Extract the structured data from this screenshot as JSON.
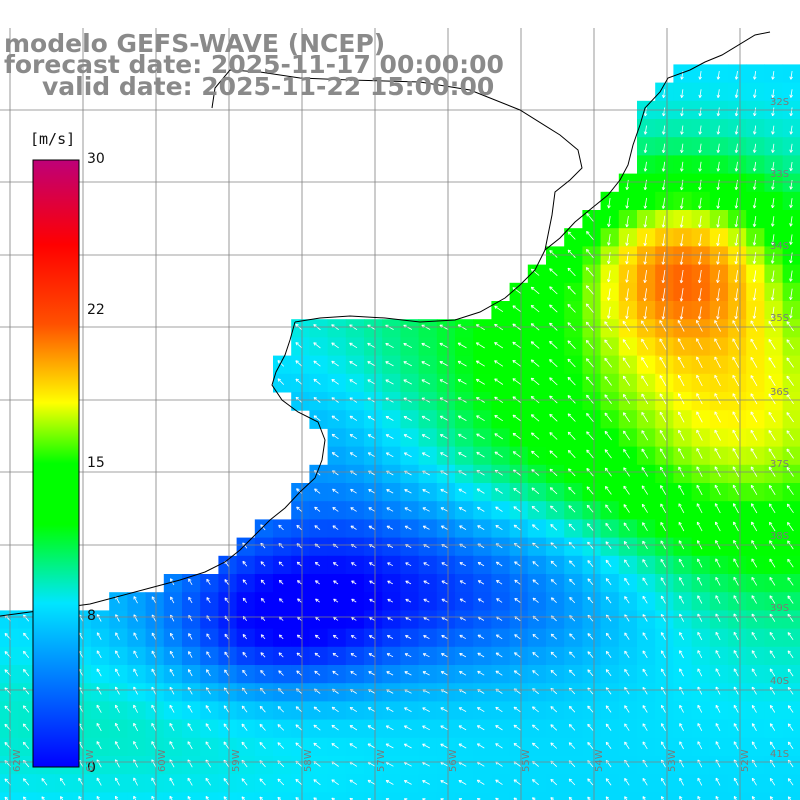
{
  "title": {
    "line1": "modelo GEFS-WAVE (NCEP)",
    "line2": "forecast date: 2025-11-17 00:00:00",
    "line3": "valid date: 2025-11-22 15:00:00"
  },
  "colorbar": {
    "unit": "[m/s]",
    "labels": [
      "30",
      "22",
      "15",
      "8",
      "0"
    ],
    "stops": [
      "#0000ff",
      "#00ffff",
      "#00ff00",
      "#ffff00",
      "#ff0000",
      "#c0007f"
    ]
  },
  "map": {
    "variable": "wind speed",
    "arrow_icon": "wind-arrow-icon",
    "lat_labels": [
      "32S",
      "33S",
      "34S",
      "35S",
      "36S",
      "37S",
      "38S",
      "39S",
      "40S",
      "41S"
    ],
    "lon_labels": [
      "62W",
      "61W",
      "60W",
      "59W",
      "58W",
      "57W",
      "56W",
      "55W",
      "54W",
      "53W",
      "52W"
    ],
    "colors": {
      "land": "#ffffff",
      "coast": "#000000",
      "grid": "#808080"
    }
  }
}
